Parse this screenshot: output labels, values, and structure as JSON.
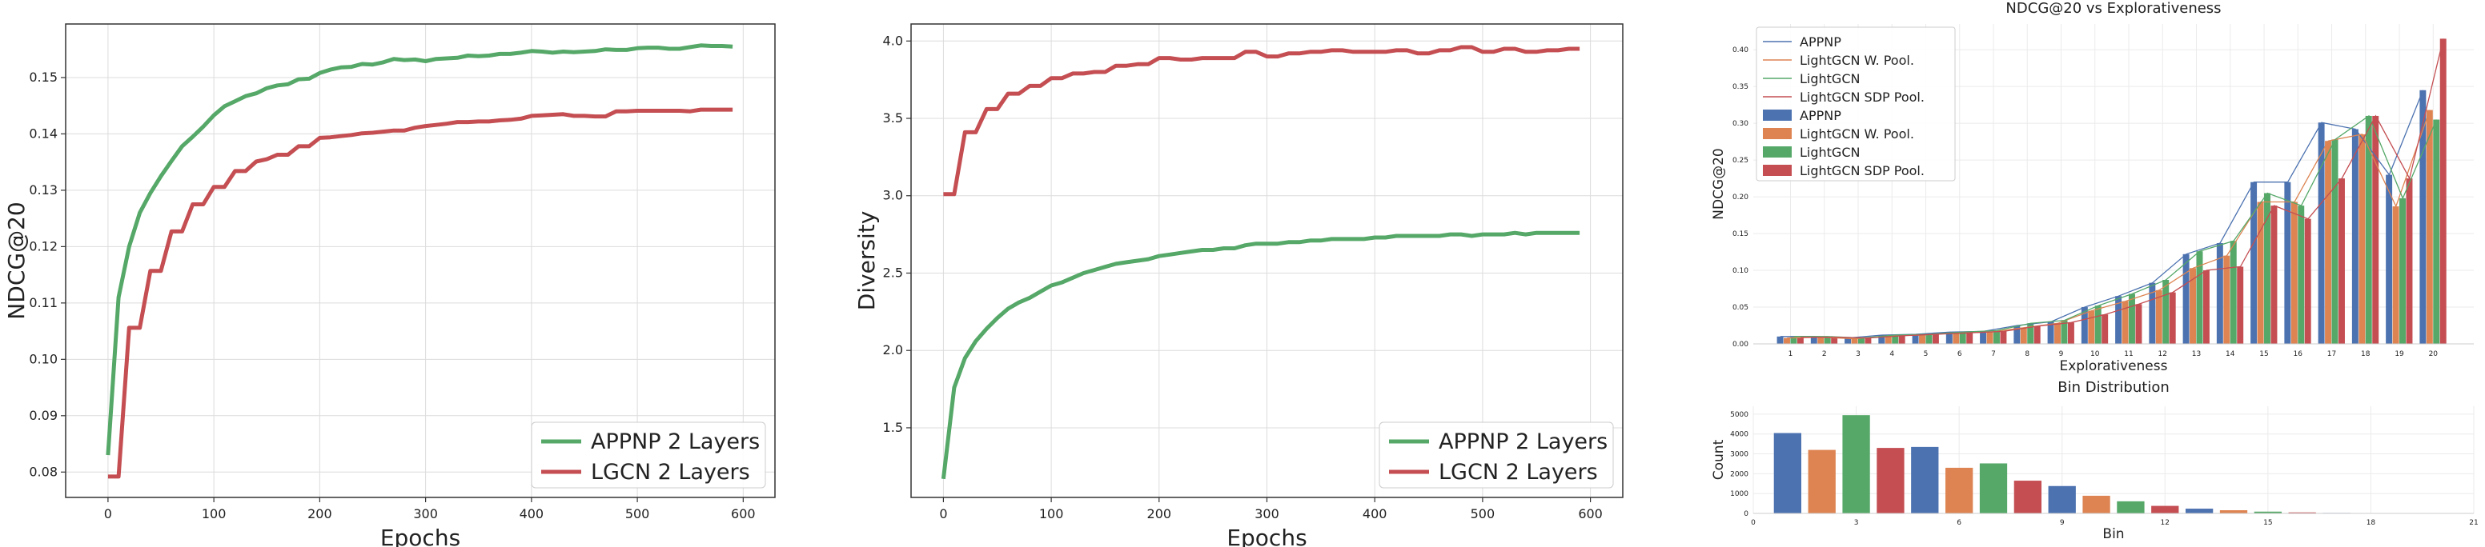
{
  "chart_data": [
    {
      "type": "line",
      "xlabel": "Epochs",
      "ylabel": "NDCG@20",
      "xlim": [
        -40,
        630
      ],
      "ylim": [
        0.0755,
        0.1595
      ],
      "xticks": [
        0,
        100,
        200,
        300,
        400,
        500,
        600
      ],
      "yticks": [
        0.08,
        0.09,
        0.1,
        0.11,
        0.12,
        0.13,
        0.14,
        0.15
      ],
      "grid": true,
      "legend": "lower-right",
      "series": [
        {
          "name": "APPNP 2 Layers",
          "color": "#55a868",
          "x": [
            0,
            10,
            20,
            30,
            40,
            50,
            60,
            70,
            80,
            90,
            100,
            110,
            120,
            130,
            140,
            150,
            160,
            170,
            180,
            190,
            200,
            210,
            220,
            230,
            240,
            250,
            260,
            270,
            280,
            290,
            300,
            310,
            320,
            330,
            340,
            350,
            360,
            370,
            380,
            390,
            400,
            410,
            420,
            430,
            440,
            450,
            460,
            470,
            480,
            490,
            500,
            510,
            520,
            530,
            540,
            550,
            560,
            570,
            580,
            590
          ],
          "y": [
            0.083,
            0.111,
            0.12,
            0.126,
            0.1295,
            0.1325,
            0.1352,
            0.1378,
            0.1395,
            0.1413,
            0.1433,
            0.1449,
            0.1458,
            0.1467,
            0.1472,
            0.1481,
            0.1486,
            0.1488,
            0.1497,
            0.1498,
            0.1508,
            0.1514,
            0.1518,
            0.1519,
            0.1524,
            0.1523,
            0.1527,
            0.1533,
            0.1531,
            0.1532,
            0.1529,
            0.1533,
            0.1534,
            0.1535,
            0.1539,
            0.1538,
            0.1539,
            0.1542,
            0.1542,
            0.1544,
            0.1547,
            0.1546,
            0.1544,
            0.1546,
            0.1545,
            0.1546,
            0.1547,
            0.155,
            0.1549,
            0.1549,
            0.1552,
            0.1553,
            0.1553,
            0.1551,
            0.1551,
            0.1554,
            0.1557,
            0.1556,
            0.1556,
            0.1555
          ]
        },
        {
          "name": "LGCN 2 Layers",
          "color": "#c44e52",
          "x": [
            0,
            10,
            20,
            30,
            40,
            50,
            60,
            70,
            80,
            90,
            100,
            110,
            120,
            130,
            140,
            150,
            160,
            170,
            180,
            190,
            200,
            210,
            220,
            230,
            240,
            250,
            260,
            270,
            280,
            290,
            300,
            310,
            320,
            330,
            340,
            350,
            360,
            370,
            380,
            390,
            400,
            410,
            420,
            430,
            440,
            450,
            460,
            470,
            480,
            490,
            500,
            510,
            520,
            530,
            540,
            550,
            560,
            570,
            580,
            590
          ],
          "y": [
            0.0792,
            0.0792,
            0.1056,
            0.1056,
            0.1157,
            0.1157,
            0.1227,
            0.1227,
            0.1275,
            0.1275,
            0.1306,
            0.1306,
            0.1334,
            0.1334,
            0.1351,
            0.1355,
            0.1363,
            0.1363,
            0.1378,
            0.1378,
            0.1393,
            0.1394,
            0.1396,
            0.1398,
            0.1401,
            0.1402,
            0.1404,
            0.1406,
            0.1406,
            0.1411,
            0.1414,
            0.1416,
            0.1418,
            0.1421,
            0.1421,
            0.1422,
            0.1422,
            0.1424,
            0.1425,
            0.1427,
            0.1432,
            0.1433,
            0.1434,
            0.1435,
            0.1432,
            0.1432,
            0.1431,
            0.1431,
            0.144,
            0.144,
            0.1441,
            0.1441,
            0.1441,
            0.1441,
            0.1441,
            0.144,
            0.1443,
            0.1443,
            0.1443,
            0.1443
          ]
        }
      ]
    },
    {
      "type": "line",
      "xlabel": "Epochs",
      "ylabel": "Diversity",
      "xlim": [
        -30,
        630
      ],
      "ylim": [
        1.05,
        4.11
      ],
      "xticks": [
        0,
        100,
        200,
        300,
        400,
        500,
        600
      ],
      "yticks": [
        1.5,
        2.0,
        2.5,
        3.0,
        3.5,
        4.0
      ],
      "grid": true,
      "legend": "lower-right",
      "series": [
        {
          "name": "APPNP 2 Layers",
          "color": "#55a868",
          "x": [
            0,
            10,
            20,
            30,
            40,
            50,
            60,
            70,
            80,
            90,
            100,
            110,
            120,
            130,
            140,
            150,
            160,
            170,
            180,
            190,
            200,
            210,
            220,
            230,
            240,
            250,
            260,
            270,
            280,
            290,
            300,
            310,
            320,
            330,
            340,
            350,
            360,
            370,
            380,
            390,
            400,
            410,
            420,
            430,
            440,
            450,
            460,
            470,
            480,
            490,
            500,
            510,
            520,
            530,
            540,
            550,
            560,
            570,
            580,
            590
          ],
          "y": [
            1.17,
            1.76,
            1.95,
            2.06,
            2.14,
            2.21,
            2.27,
            2.31,
            2.34,
            2.38,
            2.42,
            2.44,
            2.47,
            2.5,
            2.52,
            2.54,
            2.56,
            2.57,
            2.58,
            2.59,
            2.61,
            2.62,
            2.63,
            2.64,
            2.65,
            2.65,
            2.66,
            2.66,
            2.68,
            2.69,
            2.69,
            2.69,
            2.7,
            2.7,
            2.71,
            2.71,
            2.72,
            2.72,
            2.72,
            2.72,
            2.73,
            2.73,
            2.74,
            2.74,
            2.74,
            2.74,
            2.74,
            2.75,
            2.75,
            2.74,
            2.75,
            2.75,
            2.75,
            2.76,
            2.75,
            2.76,
            2.76,
            2.76,
            2.76,
            2.76
          ]
        },
        {
          "name": "LGCN 2 Layers",
          "color": "#c44e52",
          "x": [
            0,
            10,
            20,
            30,
            40,
            50,
            60,
            70,
            80,
            90,
            100,
            110,
            120,
            130,
            140,
            150,
            160,
            170,
            180,
            190,
            200,
            210,
            220,
            230,
            240,
            250,
            260,
            270,
            280,
            290,
            300,
            310,
            320,
            330,
            340,
            350,
            360,
            370,
            380,
            390,
            400,
            410,
            420,
            430,
            440,
            450,
            460,
            470,
            480,
            490,
            500,
            510,
            520,
            530,
            540,
            550,
            560,
            570,
            580,
            590
          ],
          "y": [
            3.01,
            3.01,
            3.41,
            3.41,
            3.56,
            3.56,
            3.66,
            3.66,
            3.71,
            3.71,
            3.76,
            3.76,
            3.79,
            3.79,
            3.8,
            3.8,
            3.84,
            3.84,
            3.85,
            3.85,
            3.89,
            3.89,
            3.88,
            3.88,
            3.89,
            3.89,
            3.89,
            3.89,
            3.93,
            3.93,
            3.9,
            3.9,
            3.92,
            3.92,
            3.93,
            3.93,
            3.94,
            3.94,
            3.93,
            3.93,
            3.93,
            3.93,
            3.94,
            3.94,
            3.92,
            3.92,
            3.94,
            3.94,
            3.96,
            3.96,
            3.93,
            3.93,
            3.95,
            3.95,
            3.93,
            3.93,
            3.94,
            3.94,
            3.95,
            3.95
          ]
        }
      ]
    },
    {
      "type": "bar",
      "title": "NDCG@20 vs Explorativeness",
      "xlabel": "Explorativeness",
      "ylabel": "NDCG@20",
      "ylim": [
        0,
        0.435
      ],
      "yticks": [
        0.0,
        0.05,
        0.1,
        0.15,
        0.2,
        0.25,
        0.3,
        0.35,
        0.4
      ],
      "categories": [
        "1",
        "2",
        "3",
        "4",
        "5",
        "6",
        "7",
        "8",
        "9",
        "10",
        "11",
        "12",
        "13",
        "14",
        "15",
        "16",
        "17",
        "18",
        "19",
        "20"
      ],
      "grid": true,
      "legend": "upper-left",
      "series": [
        {
          "name": "APPNP",
          "color": "#4c72b0",
          "values": [
            0.01,
            0.01,
            0.008,
            0.012,
            0.013,
            0.016,
            0.017,
            0.025,
            0.03,
            0.05,
            0.065,
            0.083,
            0.122,
            0.137,
            0.22,
            0.22,
            0.301,
            0.292,
            0.23,
            0.345
          ]
        },
        {
          "name": "LightGCN W. Pool.",
          "color": "#dd8452",
          "values": [
            0.008,
            0.009,
            0.007,
            0.011,
            0.012,
            0.015,
            0.016,
            0.022,
            0.028,
            0.045,
            0.058,
            0.073,
            0.103,
            0.12,
            0.193,
            0.193,
            0.276,
            0.285,
            0.187,
            0.318
          ]
        },
        {
          "name": "LightGCN",
          "color": "#55a868",
          "values": [
            0.01,
            0.01,
            0.008,
            0.012,
            0.013,
            0.016,
            0.018,
            0.028,
            0.032,
            0.052,
            0.068,
            0.087,
            0.126,
            0.14,
            0.205,
            0.188,
            0.278,
            0.31,
            0.198,
            0.305
          ]
        },
        {
          "name": "LightGCN SDP Pool.",
          "color": "#c44e52",
          "values": [
            0.009,
            0.009,
            0.008,
            0.011,
            0.013,
            0.015,
            0.017,
            0.024,
            0.029,
            0.04,
            0.054,
            0.07,
            0.1,
            0.105,
            0.188,
            0.17,
            0.225,
            0.31,
            0.225,
            0.415
          ]
        }
      ],
      "line_series": [
        {
          "name": "APPNP",
          "color": "#4c72b0"
        },
        {
          "name": "LightGCN W. Pool.",
          "color": "#dd8452"
        },
        {
          "name": "LightGCN",
          "color": "#55a868"
        },
        {
          "name": "LightGCN SDP Pool.",
          "color": "#c44e52"
        }
      ]
    },
    {
      "type": "bar",
      "title": "Bin Distribution",
      "xlabel": "Bin",
      "ylabel": "Count",
      "xlim": [
        0,
        21
      ],
      "ylim": [
        0,
        5400
      ],
      "xticks": [
        0,
        3,
        6,
        9,
        12,
        15,
        18,
        21
      ],
      "yticks": [
        0,
        1000,
        2000,
        3000,
        4000,
        5000
      ],
      "grid": true,
      "categories": [
        1,
        2,
        3,
        4,
        5,
        6,
        7,
        8,
        9,
        10,
        11,
        12,
        13,
        14,
        15,
        16,
        17,
        18,
        19,
        20
      ],
      "values": [
        4050,
        3200,
        4950,
        3300,
        3350,
        2300,
        2520,
        1650,
        1380,
        890,
        610,
        380,
        240,
        160,
        90,
        50,
        25,
        15,
        8,
        5
      ],
      "colors": [
        "#4c72b0",
        "#dd8452",
        "#55a868",
        "#c44e52"
      ]
    }
  ]
}
